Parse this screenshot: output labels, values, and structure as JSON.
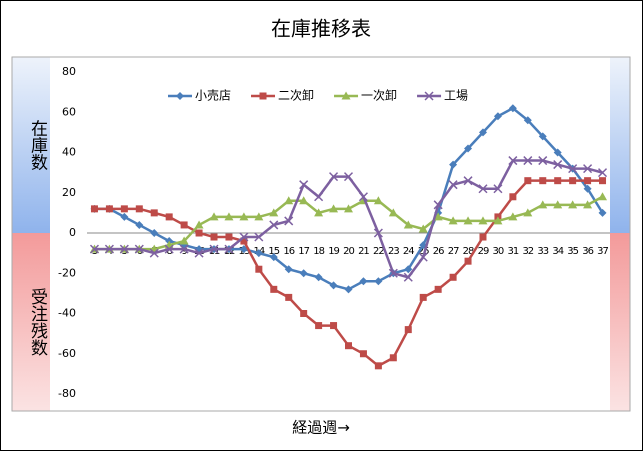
{
  "chart_data": {
    "type": "line",
    "title": "在庫推移表",
    "positive_label": "在庫数",
    "negative_label": "受注残数",
    "x_label": "経過週→",
    "categories": [
      "3",
      "4",
      "5",
      "6",
      "7",
      "8",
      "9",
      "10",
      "11",
      "12",
      "13",
      "14",
      "15",
      "16",
      "17",
      "18",
      "19",
      "20",
      "21",
      "22",
      "23",
      "24",
      "25",
      "26",
      "27",
      "28",
      "29",
      "30",
      "31",
      "32",
      "33",
      "34",
      "35",
      "36",
      "37"
    ],
    "series": [
      {
        "name": "小売店",
        "color": "#4a7ebb",
        "marker": "diamond",
        "values": [
          12,
          12,
          8,
          4,
          0,
          -4,
          -6,
          -8,
          -8,
          -8,
          -8,
          -10,
          -12,
          -18,
          -20,
          -22,
          -26,
          -28,
          -24,
          -24,
          -20,
          -18,
          -6,
          10,
          34,
          42,
          50,
          58,
          62,
          56,
          48,
          40,
          32,
          22,
          10
        ]
      },
      {
        "name": "二次卸",
        "color": "#be4b48",
        "marker": "square",
        "values": [
          12,
          12,
          12,
          12,
          10,
          8,
          4,
          0,
          -2,
          -2,
          -4,
          -18,
          -28,
          -32,
          -40,
          -46,
          -46,
          -56,
          -60,
          -66,
          -62,
          -48,
          -32,
          -28,
          -22,
          -14,
          -2,
          8,
          18,
          26,
          26,
          26,
          26,
          26,
          26
        ]
      },
      {
        "name": "一次卸",
        "color": "#98b954",
        "marker": "triangle",
        "values": [
          -8,
          -8,
          -8,
          -8,
          -8,
          -6,
          -4,
          4,
          8,
          8,
          8,
          8,
          10,
          16,
          16,
          10,
          12,
          12,
          16,
          16,
          10,
          4,
          2,
          8,
          6,
          6,
          6,
          6,
          8,
          10,
          14,
          14,
          14,
          14,
          18
        ]
      },
      {
        "name": "工場",
        "color": "#7d60a0",
        "marker": "x",
        "values": [
          -8,
          -8,
          -8,
          -8,
          -10,
          -8,
          -8,
          -10,
          -8,
          -8,
          -2,
          -2,
          4,
          6,
          24,
          18,
          28,
          28,
          18,
          0,
          -20,
          -22,
          -12,
          14,
          24,
          26,
          22,
          22,
          36,
          36,
          36,
          34,
          32,
          32,
          30
        ]
      }
    ],
    "ylim": [
      -80,
      80
    ],
    "yticks": [
      -80,
      -60,
      -40,
      -20,
      0,
      20,
      40,
      60,
      80
    ],
    "legend": "top"
  }
}
